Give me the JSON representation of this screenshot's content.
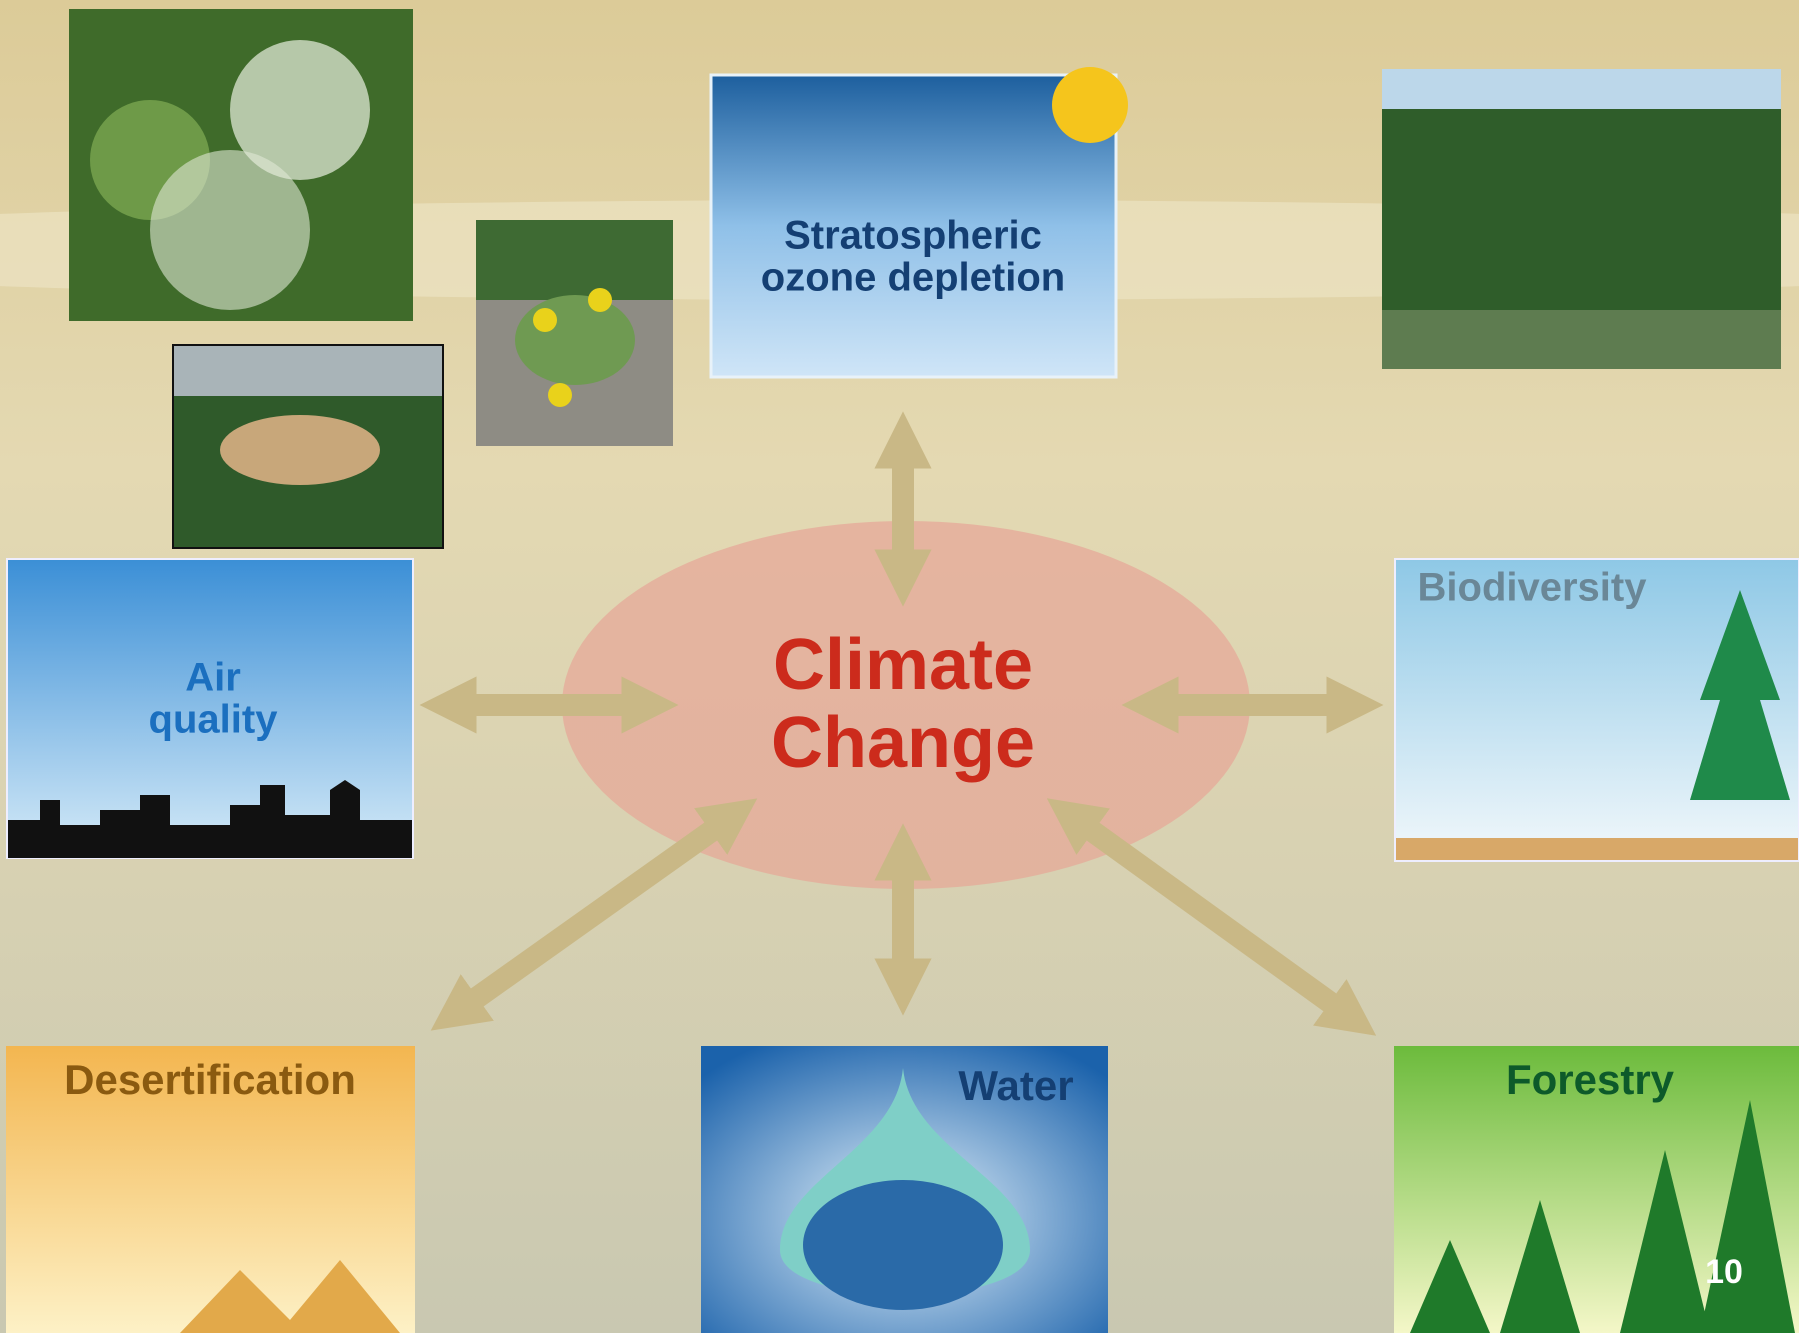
{
  "center": {
    "lines": [
      "Climate",
      "Change"
    ]
  },
  "nodes": [
    {
      "lines": [
        "Stratospheric",
        "ozone depletion"
      ]
    },
    {
      "lines": [
        "Air",
        "quality"
      ]
    },
    {
      "lines": [
        "Biodiversity"
      ]
    },
    {
      "lines": [
        "Desertification"
      ]
    },
    {
      "lines": [
        "Water"
      ]
    },
    {
      "lines": [
        "Forestry"
      ]
    }
  ],
  "page_number": "10"
}
